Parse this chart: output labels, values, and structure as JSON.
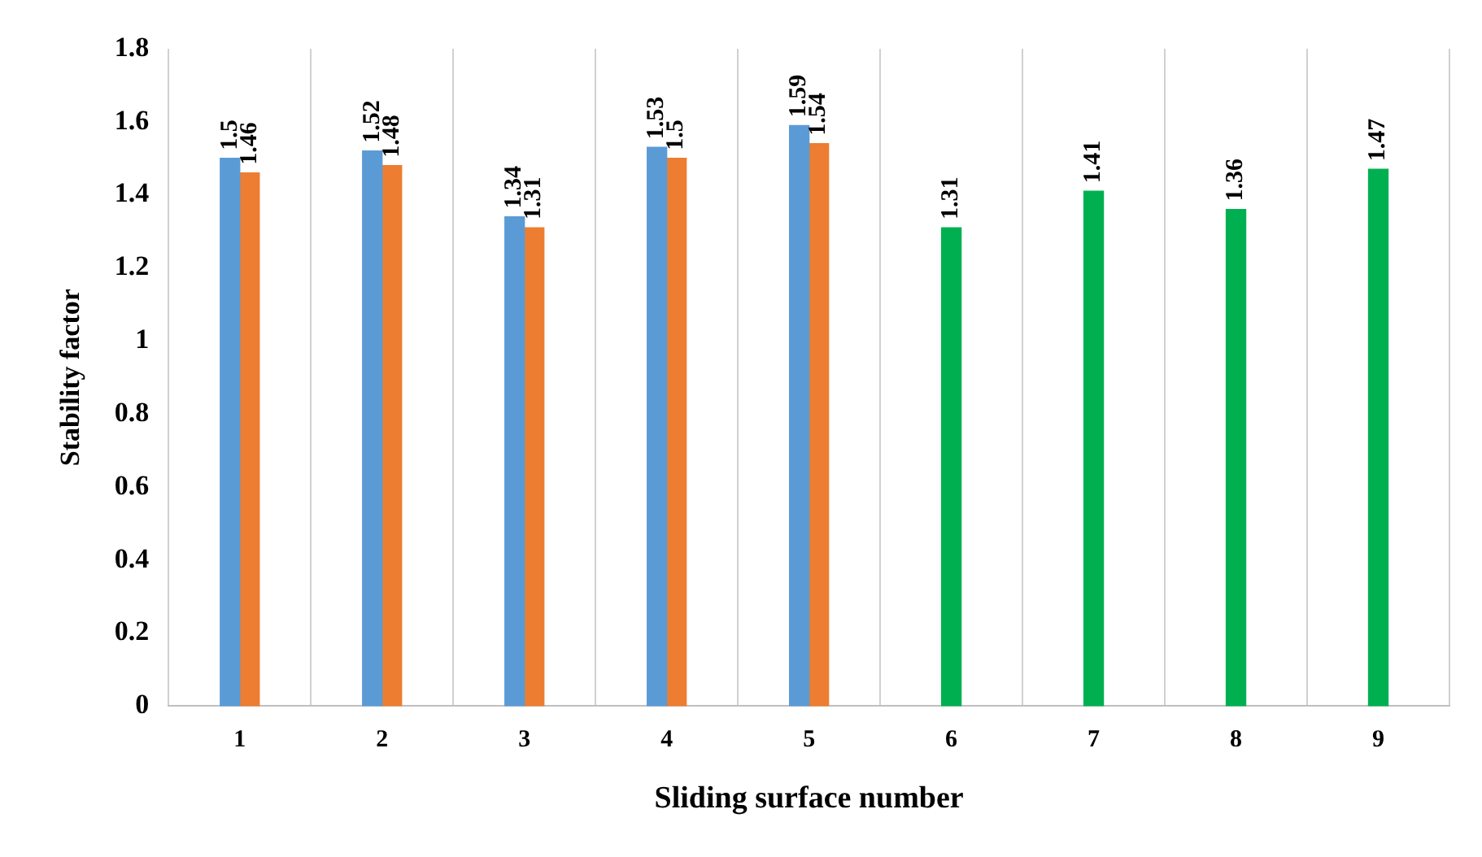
{
  "chart_data": {
    "type": "bar",
    "xlabel": "Sliding surface number",
    "ylabel": "Stability factor",
    "categories": [
      "1",
      "2",
      "3",
      "4",
      "5",
      "6",
      "7",
      "8",
      "9"
    ],
    "series": [
      {
        "color": "#5b9bd5",
        "values": [
          1.5,
          1.52,
          1.34,
          1.53,
          1.59,
          null,
          null,
          null,
          null
        ]
      },
      {
        "color": "#ed7d31",
        "values": [
          1.46,
          1.48,
          1.31,
          1.5,
          1.54,
          null,
          null,
          null,
          null
        ]
      },
      {
        "color": "#00b050",
        "values": [
          null,
          null,
          null,
          null,
          null,
          1.31,
          1.41,
          1.36,
          1.47
        ]
      }
    ],
    "ylim": [
      0,
      1.8
    ],
    "yticks": [
      0,
      0.2,
      0.4,
      0.6,
      0.8,
      1,
      1.2,
      1.4,
      1.6,
      1.8
    ],
    "grid": "x",
    "legend": false,
    "data_labels": true
  }
}
